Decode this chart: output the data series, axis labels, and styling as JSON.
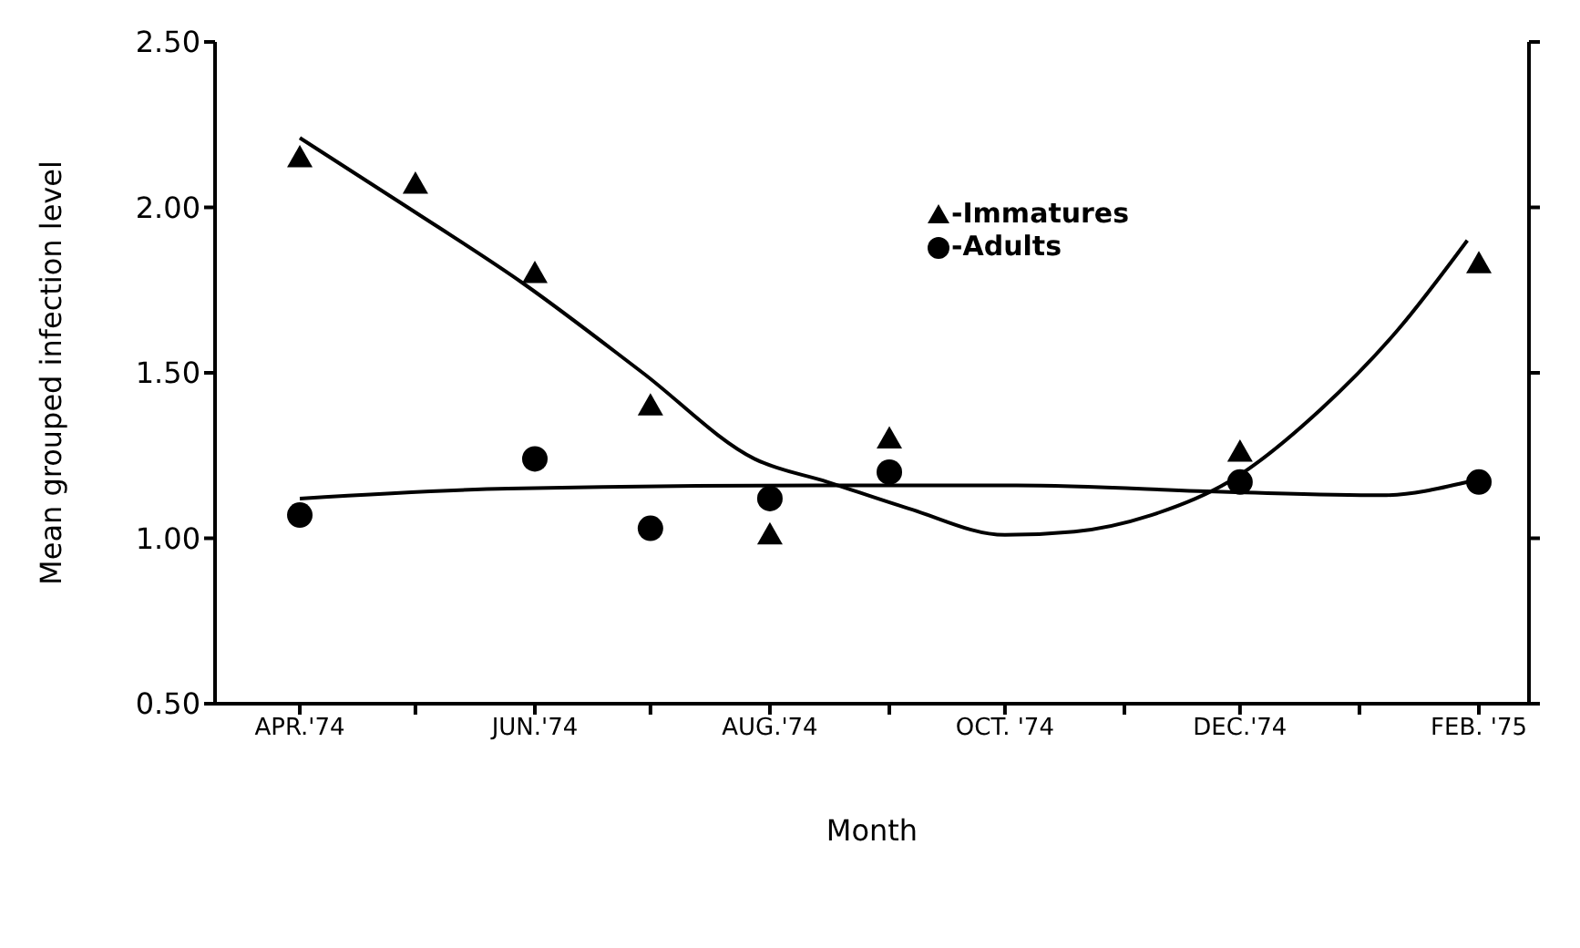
{
  "chart_data": {
    "type": "scatter",
    "xlabel": "Month",
    "ylabel": "Mean grouped infection level",
    "xlim": [
      "1974-03-10",
      "1975-02-14"
    ],
    "ylim": [
      0.5,
      2.5
    ],
    "xticks": [
      {
        "value": "1974-04",
        "label": "APR.'74"
      },
      {
        "value": "1974-05",
        "label": null
      },
      {
        "value": "1974-06",
        "label": "JUN.'74"
      },
      {
        "value": "1974-07",
        "label": null
      },
      {
        "value": "1974-08",
        "label": "AUG.'74"
      },
      {
        "value": "1974-09",
        "label": null
      },
      {
        "value": "1974-10",
        "label": "OCT. '74"
      },
      {
        "value": "1974-11",
        "label": null
      },
      {
        "value": "1974-12",
        "label": "DEC.'74"
      },
      {
        "value": "1975-01",
        "label": null
      },
      {
        "value": "1975-02",
        "label": "FEB. '75"
      }
    ],
    "yticks": [
      {
        "value": 0.5,
        "label": "0.50"
      },
      {
        "value": 1,
        "label": "1.00"
      },
      {
        "value": 1.5,
        "label": "1.50"
      },
      {
        "value": 2,
        "label": "2.00"
      },
      {
        "value": 2.5,
        "label": "2.50"
      }
    ],
    "grid": false,
    "legend": "top",
    "series": [
      {
        "name": "-Immatures",
        "color": "#000000",
        "marker": "triangle",
        "x": [
          "1974-04",
          "1974-05",
          "1974-06",
          "1974-07",
          "1974-08",
          "1974-09",
          "1974-12",
          "1975-02"
        ],
        "values": [
          2.15,
          2.07,
          1.8,
          1.4,
          1.01,
          1.3,
          1.26,
          1.83
        ]
      },
      {
        "name": "-Adults",
        "color": "#000000",
        "marker": "circle",
        "x": [
          "1974-04",
          "1974-06",
          "1974-07",
          "1974-08",
          "1974-09",
          "1974-12",
          "1975-02"
        ],
        "values": [
          1.07,
          1.24,
          1.03,
          1.12,
          1.2,
          1.17,
          1.17
        ]
      },
      {
        "type": "line",
        "color": "#000000",
        "marker": "none",
        "x": [
          "1974-04-01",
          "1974-04-29",
          "1974-05-29",
          "1974-06-29",
          "1974-07-28",
          "1974-08-16",
          "1974-09-06",
          "1974-10-01",
          "1974-10-19",
          "1974-11-08",
          "1974-11-28",
          "1974-12-22",
          "1975-01-11",
          "1975-01-29"
        ],
        "values": [
          2.21,
          2.0,
          1.77,
          1.5,
          1.24,
          1.17,
          1.09,
          1.01,
          1.02,
          1.07,
          1.17,
          1.39,
          1.63,
          1.9
        ]
      },
      {
        "type": "line",
        "color": "#000000",
        "marker": "none",
        "x": [
          "1974-04-01",
          "1974-05-25",
          "1974-08-13",
          "1974-10-04",
          "1974-11-28",
          "1975-01-07",
          "1975-01-29"
        ],
        "values": [
          1.12,
          1.15,
          1.16,
          1.16,
          1.14,
          1.13,
          1.17
        ]
      }
    ]
  }
}
